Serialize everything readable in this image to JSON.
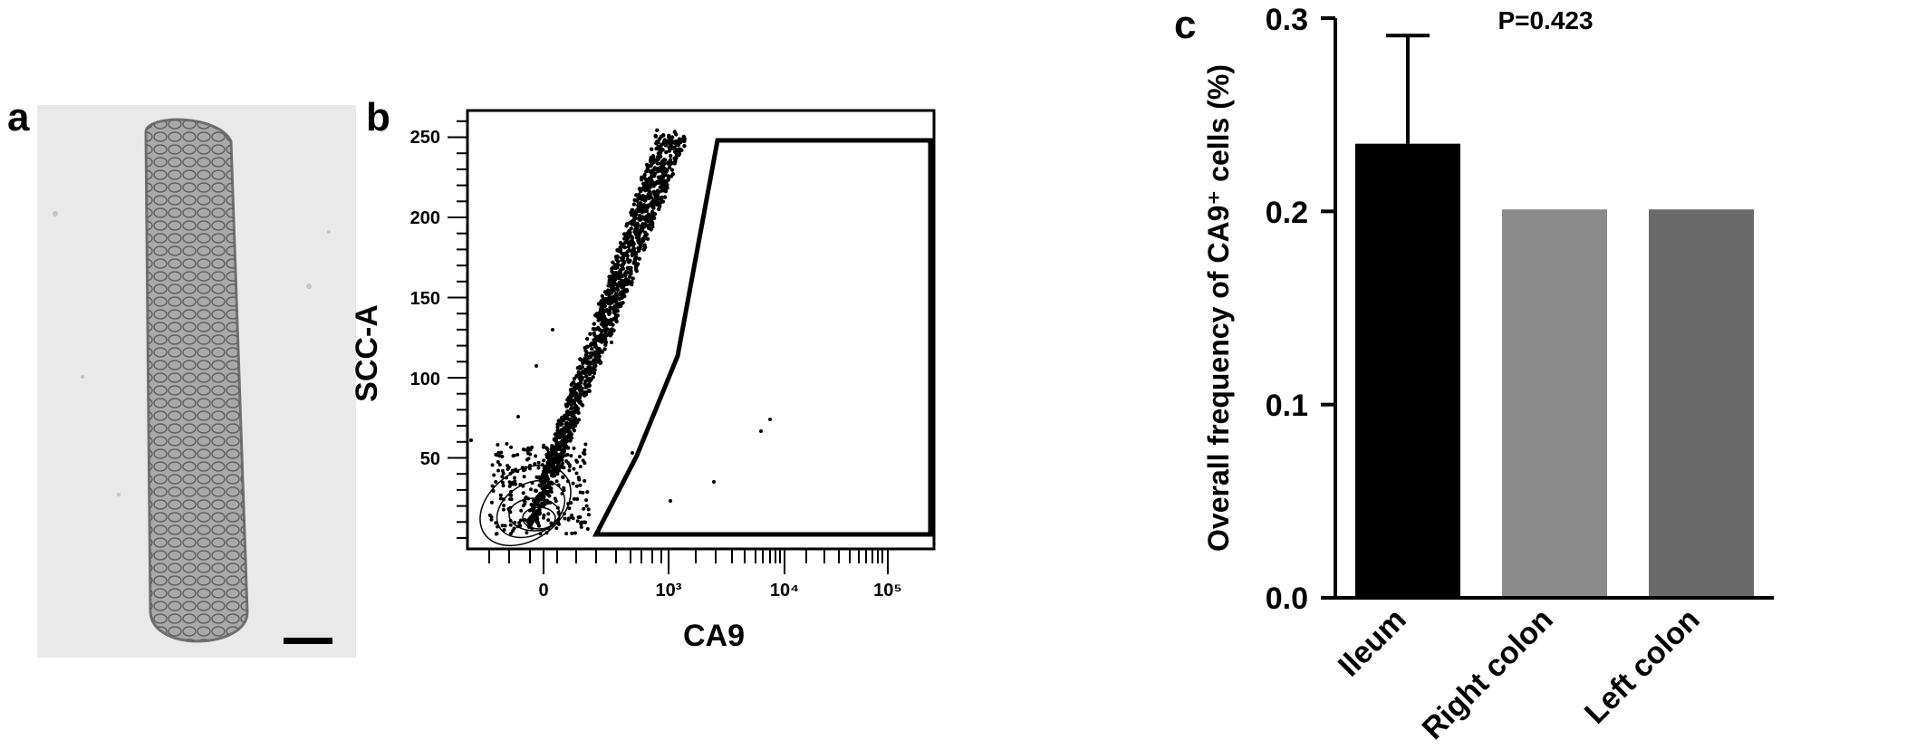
{
  "panels": {
    "a": {
      "letter": "a"
    },
    "b": {
      "letter": "b"
    },
    "c": {
      "letter": "c"
    }
  },
  "chart_data": [
    {
      "type": "scatter",
      "panel": "b",
      "xlabel": "CA9",
      "ylabel": "SCC-A",
      "x_scale": "biexponential",
      "x_tick_labels": [
        "0",
        "10³",
        "10⁴",
        "10⁵"
      ],
      "y_tick_labels": [
        "50",
        "100",
        "150",
        "200",
        "250"
      ],
      "ylim": [
        0,
        262
      ],
      "gate": {
        "shape": "polygon",
        "vertices_data": [
          [
            150,
            5
          ],
          [
            480,
            50
          ],
          [
            1200,
            110
          ],
          [
            2600,
            246
          ],
          [
            180000,
            246
          ],
          [
            180000,
            5
          ]
        ]
      }
    },
    {
      "type": "bar",
      "panel": "c",
      "categories": [
        "Ileum",
        "Right colon",
        "Left colon"
      ],
      "values": [
        0.235,
        0.201,
        0.201
      ],
      "error_upper": [
        0.291,
        null,
        null
      ],
      "colors": [
        "#000000",
        "#8a8a8a",
        "#6a6a6a"
      ],
      "ylabel": "Overall frequency of CA9⁺ cells (%)",
      "y_tick_labels": [
        "0.0",
        "0.1",
        "0.2",
        "0.3"
      ],
      "ylim": [
        0,
        0.3
      ],
      "annotation": "P=0.423"
    }
  ]
}
